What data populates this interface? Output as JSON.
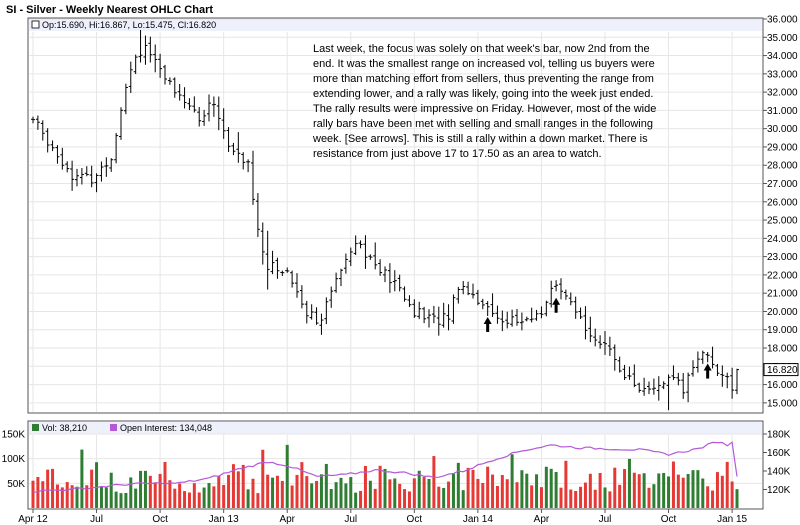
{
  "chart_data": {
    "type": "ohlc_with_volume",
    "title": "SI - Silver - Weekly Nearest OHLC Chart",
    "price_panel": {
      "legend": "Op:15.690, Hi:16.867, Lo:15.475, Cl:16.820",
      "ylim": [
        14.5,
        36
      ],
      "y_ticks": [
        "15.000",
        "16.000",
        "17.000",
        "18.000",
        "19.000",
        "20.000",
        "21.000",
        "22.000",
        "23.000",
        "24.000",
        "25.000",
        "26.000",
        "27.000",
        "28.000",
        "29.000",
        "30.000",
        "31.000",
        "32.000",
        "33.000",
        "34.000",
        "35.000",
        "36.000"
      ],
      "last_price_label": "16.820",
      "anchors": [
        {
          "w": 0,
          "c": 30.5
        },
        {
          "w": 4,
          "c": 29.0
        },
        {
          "w": 8,
          "c": 27.5
        },
        {
          "w": 12,
          "c": 27.2
        },
        {
          "w": 16,
          "c": 28.5
        },
        {
          "w": 19,
          "c": 32.5
        },
        {
          "w": 21,
          "c": 34.0
        },
        {
          "w": 23,
          "c": 34.6
        },
        {
          "w": 26,
          "c": 33.0
        },
        {
          "w": 30,
          "c": 32.0
        },
        {
          "w": 34,
          "c": 30.5
        },
        {
          "w": 37,
          "c": 31.5
        },
        {
          "w": 40,
          "c": 29.0
        },
        {
          "w": 44,
          "c": 28.0
        },
        {
          "w": 46,
          "c": 24.5
        },
        {
          "w": 48,
          "c": 22.5
        },
        {
          "w": 52,
          "c": 22.2
        },
        {
          "w": 56,
          "c": 20.0
        },
        {
          "w": 59,
          "c": 19.5
        },
        {
          "w": 63,
          "c": 22.5
        },
        {
          "w": 66,
          "c": 24.0
        },
        {
          "w": 70,
          "c": 22.5
        },
        {
          "w": 74,
          "c": 21.5
        },
        {
          "w": 78,
          "c": 20.0
        },
        {
          "w": 82,
          "c": 19.5
        },
        {
          "w": 85,
          "c": 19.8
        },
        {
          "w": 87,
          "c": 21.5
        },
        {
          "w": 90,
          "c": 21.0
        },
        {
          "w": 94,
          "c": 19.8
        },
        {
          "w": 98,
          "c": 19.5
        },
        {
          "w": 101,
          "c": 19.4
        },
        {
          "w": 104,
          "c": 20.0
        },
        {
          "w": 106,
          "c": 21.3
        },
        {
          "w": 108,
          "c": 21.0
        },
        {
          "w": 112,
          "c": 19.5
        },
        {
          "w": 116,
          "c": 18.3
        },
        {
          "w": 120,
          "c": 17.0
        },
        {
          "w": 123,
          "c": 16.0
        },
        {
          "w": 126,
          "c": 15.5
        },
        {
          "w": 128,
          "c": 16.0
        },
        {
          "w": 131,
          "c": 16.2
        },
        {
          "w": 133,
          "c": 15.7
        },
        {
          "w": 135,
          "c": 17.0
        },
        {
          "w": 137,
          "c": 17.9
        },
        {
          "w": 139,
          "c": 17.2
        },
        {
          "w": 141,
          "c": 16.5
        },
        {
          "w": 143,
          "c": 15.8
        },
        {
          "w": 144,
          "c": 16.82
        }
      ],
      "arrow_weeks": [
        93,
        107,
        138
      ]
    },
    "volume_panel": {
      "legend_vol": "Vol: 38,210",
      "legend_oi": "Open Interest: 134,048",
      "vol_ylim": [
        0,
        150000
      ],
      "vol_ticks": [
        "150K",
        "100K",
        "50K"
      ],
      "oi_ylim": [
        100000,
        180000
      ],
      "oi_ticks": [
        "180K",
        "160K",
        "140K",
        "120K"
      ],
      "oi_anchors": [
        {
          "w": 0,
          "v": 118000
        },
        {
          "w": 10,
          "v": 121000
        },
        {
          "w": 20,
          "v": 126000
        },
        {
          "w": 30,
          "v": 127000
        },
        {
          "w": 36,
          "v": 132000
        },
        {
          "w": 42,
          "v": 142000
        },
        {
          "w": 48,
          "v": 150000
        },
        {
          "w": 52,
          "v": 146000
        },
        {
          "w": 58,
          "v": 134000
        },
        {
          "w": 64,
          "v": 136000
        },
        {
          "w": 70,
          "v": 141000
        },
        {
          "w": 76,
          "v": 138000
        },
        {
          "w": 82,
          "v": 133000
        },
        {
          "w": 88,
          "v": 140000
        },
        {
          "w": 94,
          "v": 152000
        },
        {
          "w": 100,
          "v": 162000
        },
        {
          "w": 106,
          "v": 168000
        },
        {
          "w": 112,
          "v": 165000
        },
        {
          "w": 118,
          "v": 164000
        },
        {
          "w": 124,
          "v": 163000
        },
        {
          "w": 130,
          "v": 158000
        },
        {
          "w": 136,
          "v": 164000
        },
        {
          "w": 140,
          "v": 172000
        },
        {
          "w": 142,
          "v": 168000
        },
        {
          "w": 143,
          "v": 172000
        },
        {
          "w": 144,
          "v": 134048
        }
      ]
    },
    "x_labels": [
      {
        "label": "Apr 12",
        "w": 0
      },
      {
        "label": "Jul",
        "w": 13
      },
      {
        "label": "Oct",
        "w": 26
      },
      {
        "label": "Jan 13",
        "w": 39
      },
      {
        "label": "Apr",
        "w": 52
      },
      {
        "label": "Jul",
        "w": 65
      },
      {
        "label": "Oct",
        "w": 78
      },
      {
        "label": "Jan 14",
        "w": 91
      },
      {
        "label": "Apr",
        "w": 104
      },
      {
        "label": "Jul",
        "w": 117
      },
      {
        "label": "Oct",
        "w": 130
      },
      {
        "label": "Jan 15",
        "w": 143
      }
    ],
    "weeks": 145
  },
  "annotation": {
    "lines": [
      "Last week, the focus was solely on that week's bar, now 2nd from the",
      "end.  It was the smallest range on increased vol, telling us buyers were",
      "more than matching effort from sellers, thus preventing the range from",
      "extending lower, and a rally was likely, going into the week just ended.",
      "The rally results were impressive on Friday.  However, most of the wide",
      "rally bars have been met  with selling and small ranges in the following",
      "week.  [See arrows].  This is still a rally within a down market.  There is",
      "resistance from just above 17 to 17.50 as an area to watch."
    ]
  },
  "colors": {
    "up_volume": "#2e7d32",
    "down_volume": "#e53935",
    "open_interest": "#b45ad8",
    "price_bar": "#000000",
    "legend_bg": "#eef0fb"
  }
}
